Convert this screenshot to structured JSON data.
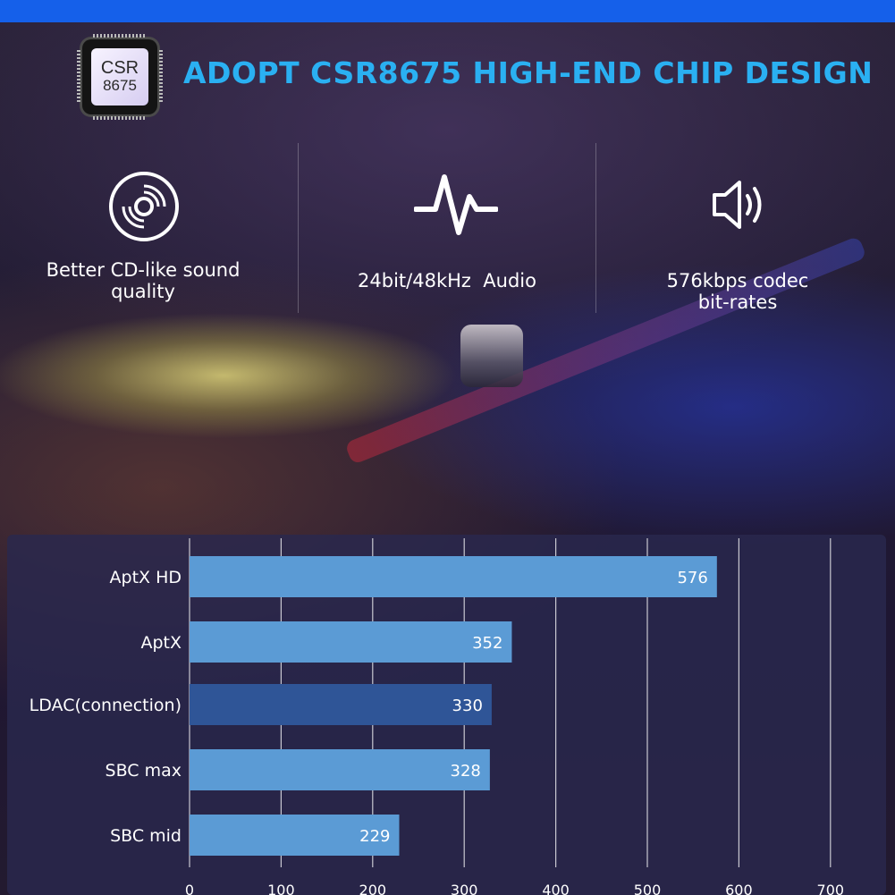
{
  "header": {
    "chip_line1": "CSR",
    "chip_line2": "8675",
    "title": "ADOPT CSR8675 HIGH-END CHIP DESIGN"
  },
  "features": [
    {
      "icon": "cd-disc-icon",
      "line1": "Better CD-like sound",
      "line2": "quality"
    },
    {
      "icon": "waveform-icon",
      "line1": "24bit/48kHz  Audio",
      "line2": ""
    },
    {
      "icon": "speaker-icon",
      "line1": "576kbps codec",
      "line2": "bit-rates"
    }
  ],
  "colors": {
    "topbar": "#1560ea",
    "headline": "#2ab0f2",
    "bar": "#5b9bd5",
    "bar_highlight": "#2f5597"
  },
  "chart_data": {
    "type": "bar",
    "orientation": "horizontal",
    "categories": [
      "AptX HD",
      "AptX",
      "LDAC(connection)",
      "SBC max",
      "SBC mid"
    ],
    "values": [
      576,
      352,
      330,
      328,
      229
    ],
    "value_labels": [
      "576",
      "352",
      "330",
      "328",
      "229"
    ],
    "highlight_index": 2,
    "x_ticks": [
      0,
      100,
      200,
      300,
      400,
      500,
      600,
      700
    ],
    "x_tick_labels": [
      "0",
      "100",
      "200",
      "300",
      "400",
      "500",
      "600",
      "700"
    ],
    "xlim": [
      0,
      700
    ],
    "grid": true,
    "title": "",
    "xlabel": "",
    "ylabel": ""
  }
}
